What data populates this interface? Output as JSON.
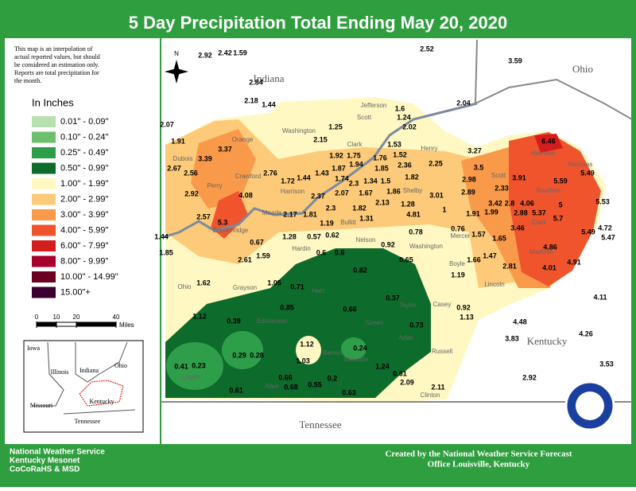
{
  "title": "5 Day Precipitation Total Ending May 20, 2020",
  "disclaimer": [
    "This map is an interpolation of",
    "actual reported values, but should",
    "be considered an estimation only.",
    "Reports are total precipitation for",
    "the month."
  ],
  "legend": {
    "title": "In Inches",
    "items": [
      {
        "label": "0.01\" - 0.09\"",
        "color": "#b7dfb0"
      },
      {
        "label": "0.10\" - 0.24\"",
        "color": "#6dbf6d"
      },
      {
        "label": "0.25\" - 0.49\"",
        "color": "#2f9e4a"
      },
      {
        "label": "0.50\" - 0.99\"",
        "color": "#0d6b2b"
      },
      {
        "label": "1.00\" - 1.99\"",
        "color": "#fff8c2"
      },
      {
        "label": "2.00\" - 2.99\"",
        "color": "#fcca78"
      },
      {
        "label": "3.00\" - 3.99\"",
        "color": "#f9994a"
      },
      {
        "label": "4.00\" - 5.99\"",
        "color": "#f0542d"
      },
      {
        "label": "6.00\" - 7.99\"",
        "color": "#d41d1d"
      },
      {
        "label": "8.00\" - 9.99\"",
        "color": "#a8002c"
      },
      {
        "label": "10.00\" - 14.99\"",
        "color": "#6b0020"
      },
      {
        "label": "15.00\"+",
        "color": "#3b0030"
      }
    ]
  },
  "scale": {
    "ticks": [
      0,
      10,
      20,
      40
    ],
    "unit": "Miles"
  },
  "north": "N",
  "states": [
    "Indiana",
    "Ohio",
    "Kentucky",
    "Tennessee"
  ],
  "counties": [
    "Jefferson",
    "Scott",
    "Washington",
    "Orange",
    "Clark",
    "Henry",
    "Dubois",
    "Crawford",
    "Harrison",
    "Perry",
    "Meade",
    "Bullitt",
    "Shelby",
    "Scott",
    "Harrison",
    "Nicholas",
    "Bourbon",
    "Clark",
    "Madison",
    "Breckinridge",
    "Hardin",
    "Nelson",
    "Washington",
    "Mercer",
    "Boyle",
    "Lincoln",
    "Ohio",
    "Grayson",
    "Casey",
    "Adair",
    "Russell",
    "Clinton",
    "Logan",
    "Green",
    "Taylor",
    "Hart",
    "Edmonson",
    "Barren",
    "Metcalfe",
    "Allen"
  ],
  "inset": [
    "Iowa",
    "Illinois",
    "Indiana",
    "Ohio",
    "Missouri",
    "Kentucky",
    "Tennessee"
  ],
  "stations": [
    2.92,
    2.42,
    1.59,
    2.52,
    3.59,
    2.84,
    2.18,
    1.44,
    2.07,
    1.91,
    1.6,
    1.24,
    2.02,
    2.04,
    1.25,
    3.37,
    3.39,
    2.67,
    2.56,
    2.92,
    1.53,
    1.52,
    3.27,
    2.15,
    1.92,
    1.75,
    1.76,
    1.94,
    1.87,
    2.36,
    2.25,
    3.5,
    1.43,
    1.85,
    1.44,
    2.76,
    1.72,
    1.74,
    2.3,
    1.34,
    1.5,
    1.82,
    2.98,
    3.91,
    5.49,
    2.33,
    2.89,
    2.37,
    2.07,
    1.67,
    1.86,
    3.01,
    5.59,
    4.08,
    2.13,
    1.28,
    1.82,
    2.3,
    2.17,
    1.81,
    1.31,
    4.81,
    1,
    3.42,
    2.8,
    4.06,
    5,
    6.46,
    5.53,
    1.99,
    2.88,
    5.37,
    1.91,
    2.57,
    5.3,
    1.19,
    5.7,
    4.72,
    3.46,
    5.49,
    5.47,
    1.57,
    1.65,
    1.44,
    1.85,
    0.67,
    1.28,
    0.57,
    0.62,
    0.92,
    0.78,
    0.76,
    4.86,
    1.47,
    2.81,
    4.01,
    4.91,
    1.59,
    2.61,
    0.6,
    0.6,
    0.65,
    1.66,
    0.82,
    1.19,
    1.62,
    1.05,
    0.71,
    0.37,
    0.85,
    0.66,
    0.92,
    1.12,
    1.13,
    4.11,
    0.39,
    0.73,
    4.48,
    4.26,
    3.83,
    1.12,
    0.24,
    0.29,
    0.28,
    0.41,
    0.23,
    1.03,
    1.24,
    0.61,
    3.53,
    2.92,
    0.66,
    0.2,
    0.68,
    0.55,
    2.09,
    2.11,
    0.61,
    0.63
  ],
  "footer_left": [
    "National Weather Service",
    "Kentucky Mesonet",
    "CoCoRaHS & MSD"
  ],
  "footer_right": [
    "Created by the National Weather Service Forecast",
    "Office Louisville, Kentucky"
  ]
}
